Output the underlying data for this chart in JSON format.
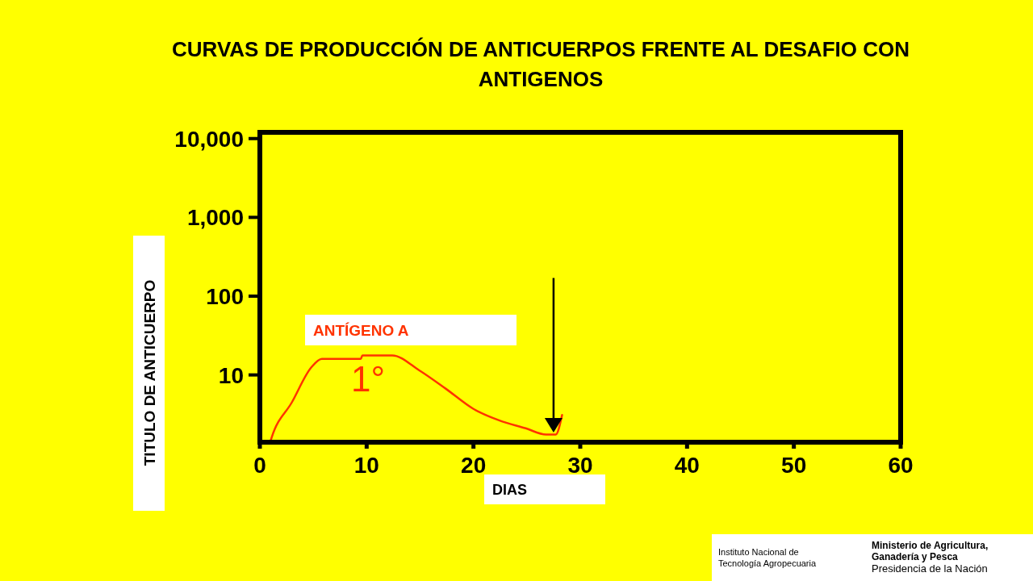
{
  "chart_data": {
    "type": "line",
    "title": "CURVAS DE PRODUCCIÓN DE ANTICUERPOS FRENTE AL DESAFIO CON ANTIGENOS",
    "xlabel": "DIAS",
    "ylabel": "TITULO DE ANTICUERPO",
    "log": "y",
    "xlim": [
      0,
      60
    ],
    "xticks": [
      0,
      10,
      20,
      30,
      40,
      50,
      60
    ],
    "ylim": [
      1.4,
      12000
    ],
    "yticks": [
      {
        "value": 10,
        "label": "10"
      },
      {
        "value": 100,
        "label": "100"
      },
      {
        "value": 1000,
        "label": "1,000"
      },
      {
        "value": 10000,
        "label": "10,000"
      }
    ],
    "grid": false,
    "legend": "left",
    "marker": "none",
    "line_style": "solid",
    "series": [
      {
        "name": "ANTÍGENO A",
        "color": "#ff3300",
        "x": [
          1,
          1.1,
          3,
          4.8,
          5.8,
          9.45,
          9.6,
          12.4,
          14.9,
          17.4,
          20,
          22.4,
          24.9,
          26.8,
          27.7,
          28.3
        ],
        "values": [
          1.45,
          1.6,
          4.5,
          12.4,
          16,
          16,
          17.7,
          17.7,
          11.5,
          6.7,
          3.7,
          2.65,
          2.1,
          1.75,
          1.75,
          3.1
        ]
      }
    ],
    "annotations": [
      "1°",
      "Instituto Nacional de Tecnología Agropecuaria",
      "Ministerio de Agricultura, Ganadería y Pesca",
      "Presidencia de la Nación"
    ],
    "ref_lines": [
      {
        "axis": "x",
        "value": 27.5,
        "color": "#000000"
      }
    ]
  }
}
